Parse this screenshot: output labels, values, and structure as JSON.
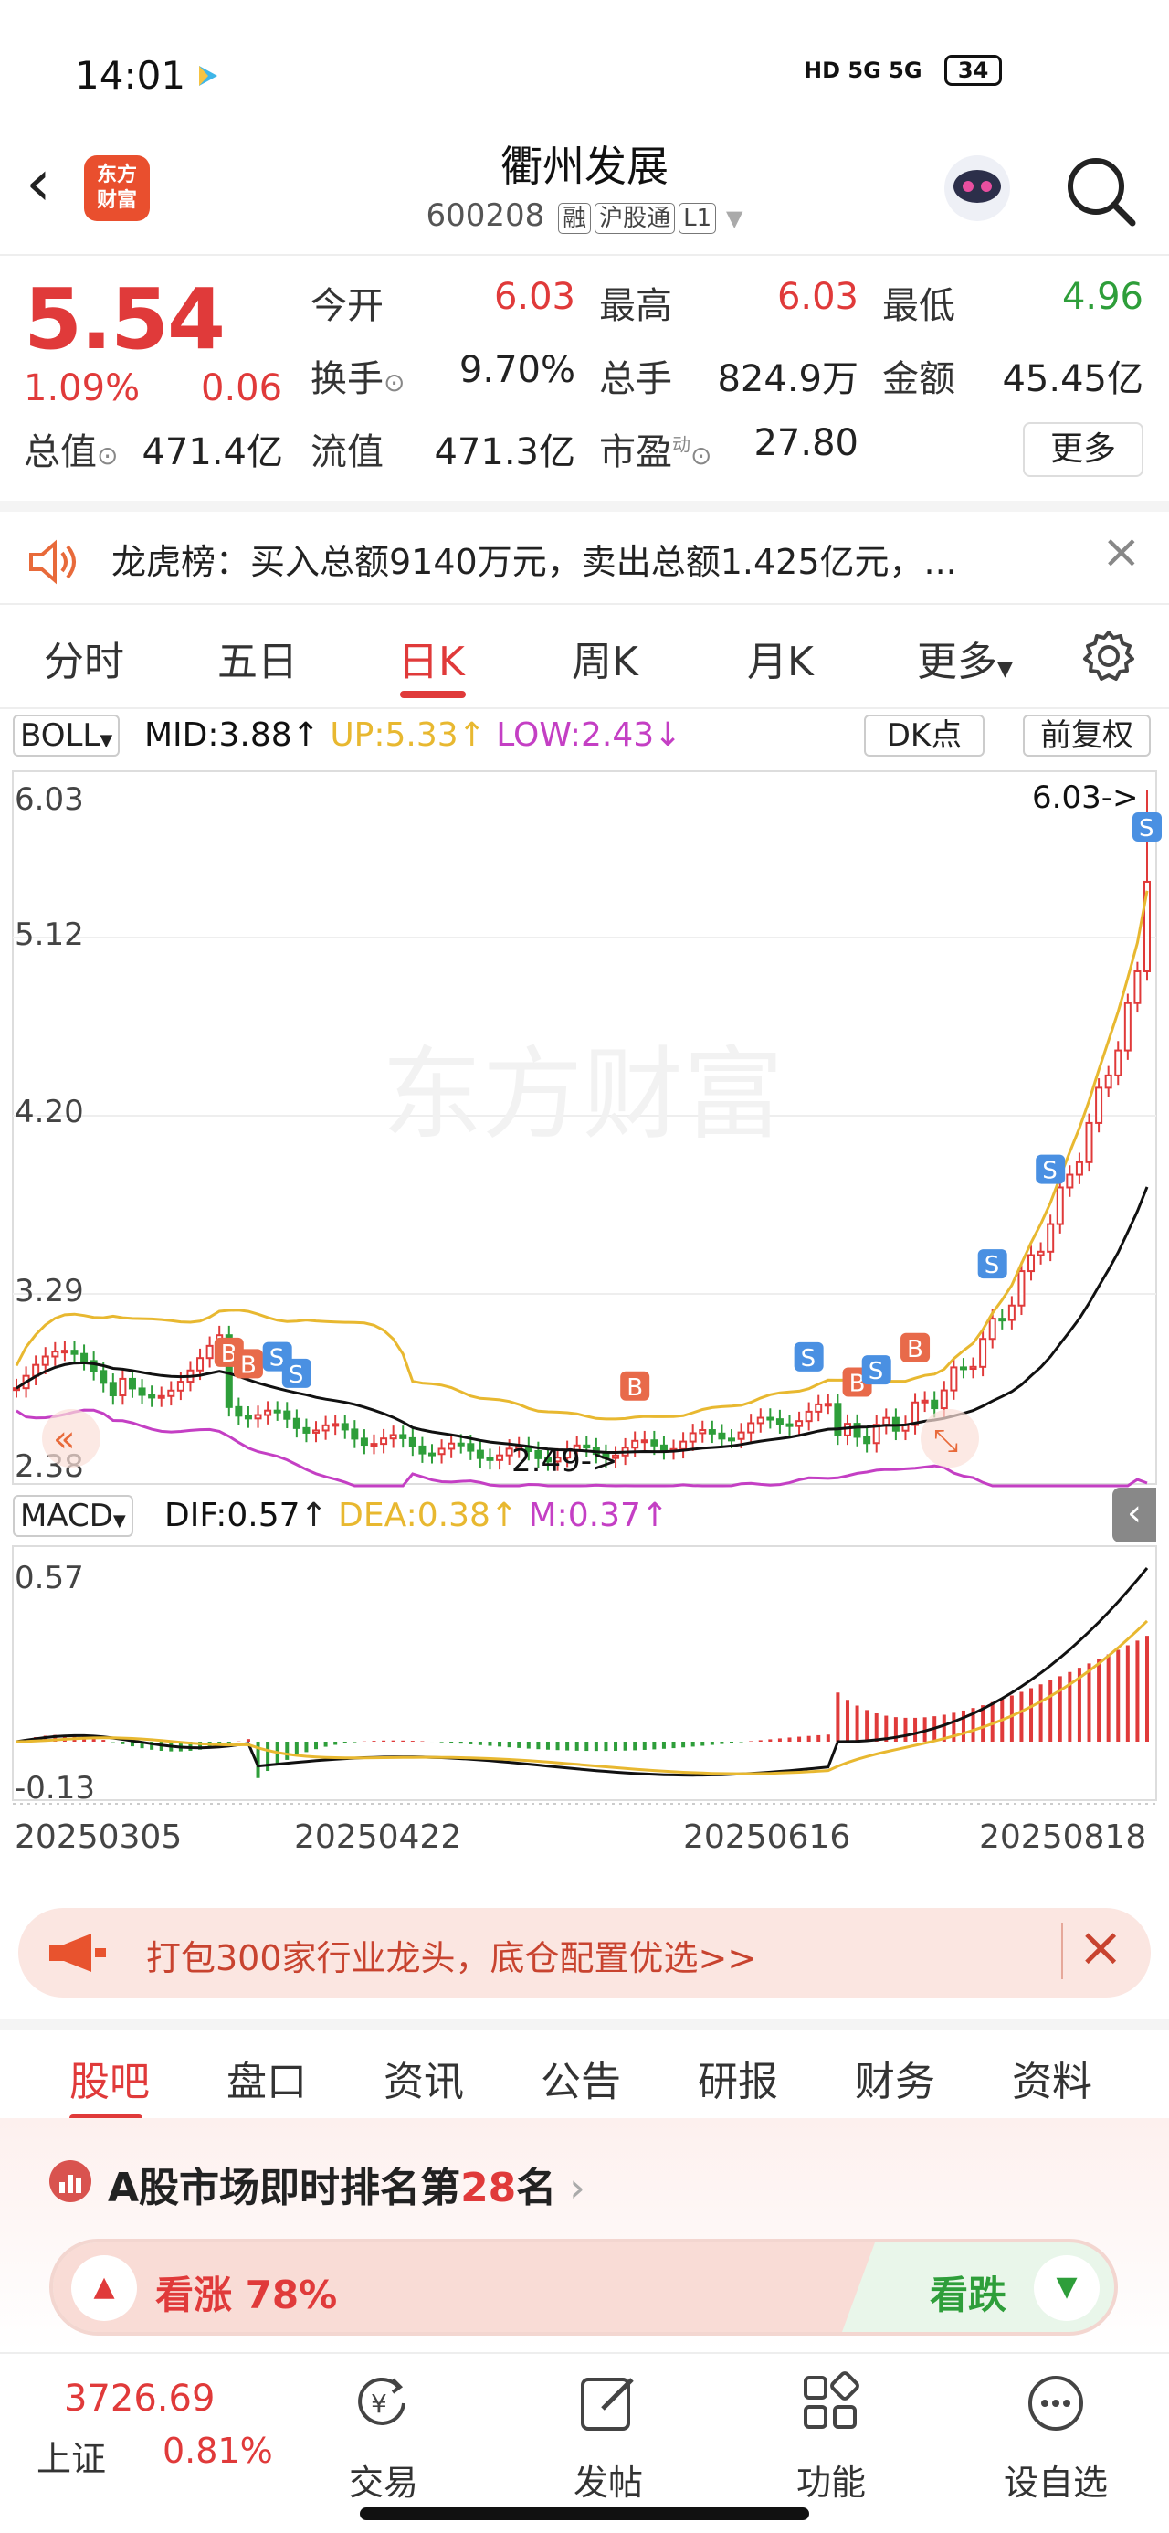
{
  "status_bar": {
    "time": "14:01",
    "signal_text": "HD 5G 5G",
    "battery": "34"
  },
  "header": {
    "logo_text": "东方\n财富",
    "stock_name": "衢州发展",
    "stock_code": "600208",
    "tags": [
      "融",
      "沪股通",
      "L1"
    ]
  },
  "quote": {
    "price": "5.54",
    "change_pct": "1.09%",
    "change": "0.06",
    "fields": [
      {
        "label": "今开",
        "value": "6.03",
        "color": "red"
      },
      {
        "label": "最高",
        "value": "6.03",
        "color": "red"
      },
      {
        "label": "最低",
        "value": "4.96",
        "color": "green"
      },
      {
        "label": "换手",
        "value": "9.70%",
        "color": ""
      },
      {
        "label": "总手",
        "value": "824.9万",
        "color": ""
      },
      {
        "label": "金额",
        "value": "45.45亿",
        "color": ""
      },
      {
        "label": "总值",
        "value": "471.4亿",
        "color": ""
      },
      {
        "label": "流值",
        "value": "471.3亿",
        "color": ""
      },
      {
        "label": "市盈",
        "value": "27.80",
        "color": ""
      }
    ],
    "pe_superscript": "动",
    "more_label": "更多"
  },
  "longhubang": {
    "text": "龙虎榜：买入总额9140万元，卖出总额1.425亿元，..."
  },
  "kline_tabs": {
    "items": [
      "分时",
      "五日",
      "日K",
      "周K",
      "月K",
      "更多"
    ],
    "active": "日K"
  },
  "chart_data": {
    "type": "candlestick",
    "indicator_main": {
      "name": "BOLL",
      "mid": "MID:3.88",
      "up": "UP:5.33",
      "low": "LOW:2.43"
    },
    "dk_label": "DK点",
    "adjust_label": "前复权",
    "watermark": "东方财富",
    "price_axis": [
      "6.03",
      "5.12",
      "4.20",
      "3.29",
      "2.38"
    ],
    "ylim": [
      2.38,
      6.03
    ],
    "high_annotation": "6.03->",
    "low_annotation": "2.49->",
    "dates": [
      "20250305",
      "20250422",
      "20250616",
      "20250818"
    ],
    "macd": {
      "name": "MACD",
      "dif": "DIF:0.57",
      "dea": "DEA:0.38",
      "m": "M:0.37",
      "axis": [
        "0.57",
        "-0.13"
      ]
    },
    "colors": {
      "up": "#e03a3a",
      "down": "#2e9e3a",
      "mid": "#111111",
      "upper": "#e8b830",
      "lower": "#c43fc4"
    }
  },
  "ad_bar": {
    "text": "打包300家行业龙头，底仓配置优选>>"
  },
  "content_tabs": {
    "items": [
      "股吧",
      "盘口",
      "资讯",
      "公告",
      "研报",
      "财务",
      "资料"
    ],
    "active": "股吧"
  },
  "rank": {
    "prefix": "A股市场即时排名第",
    "number": "28",
    "suffix": "名",
    "bull_label": "看涨 78%",
    "bear_label": "看跌",
    "bull_pct": 78
  },
  "bottom_nav": {
    "index_value": "3726.69",
    "index_name": "上证",
    "index_pct": "0.81%",
    "items": [
      {
        "label": "交易",
        "icon": "trade-icon"
      },
      {
        "label": "发帖",
        "icon": "post-icon"
      },
      {
        "label": "功能",
        "icon": "grid-icon"
      },
      {
        "label": "设自选",
        "icon": "more-dots-icon"
      }
    ]
  }
}
